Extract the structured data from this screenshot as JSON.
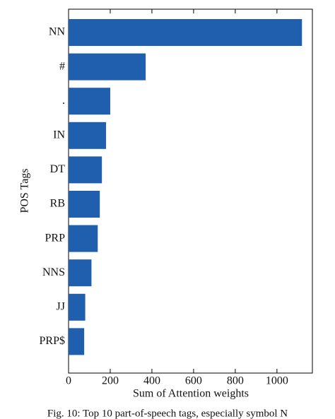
{
  "chart_data": {
    "type": "bar",
    "orientation": "horizontal",
    "xlabel": "Sum of Attention weights",
    "ylabel": "POS Tags",
    "categories": [
      "NN",
      "#",
      ".",
      "IN",
      "DT",
      "RB",
      "PRP",
      "NNS",
      "JJ",
      "PRP$"
    ],
    "values": [
      1120,
      370,
      200,
      180,
      160,
      150,
      140,
      110,
      80,
      75
    ],
    "color": "#1f5fad",
    "xlim": [
      0,
      1170
    ],
    "xticks": [
      0,
      200,
      400,
      600,
      800,
      1000
    ]
  },
  "caption": "Fig. 10: Top 10 part-of-speech tags, especially symbol N"
}
